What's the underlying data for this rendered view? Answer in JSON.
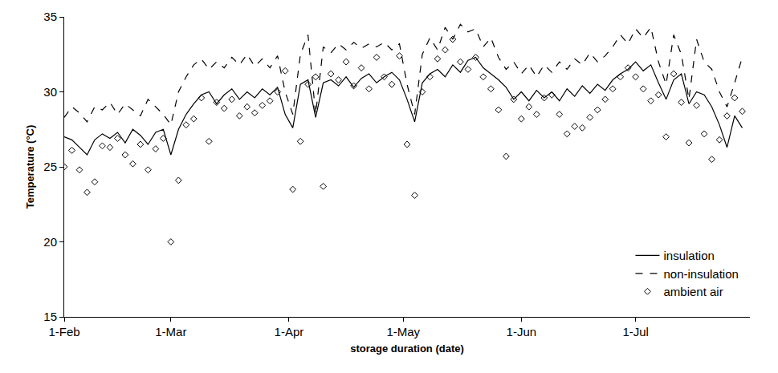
{
  "chart_data": {
    "type": "line",
    "x_title": "storage duration (date)",
    "y_title": "Temperature (°C)",
    "x": [
      0,
      2,
      4,
      6,
      8,
      10,
      12,
      14,
      16,
      18,
      20,
      22,
      24,
      26,
      28,
      30,
      32,
      34,
      36,
      38,
      40,
      42,
      44,
      46,
      48,
      50,
      52,
      54,
      56,
      58,
      60,
      62,
      64,
      66,
      68,
      70,
      72,
      74,
      76,
      78,
      80,
      82,
      84,
      86,
      88,
      90,
      92,
      94,
      96,
      98,
      100,
      102,
      104,
      106,
      108,
      110,
      112,
      114,
      116,
      118,
      120,
      122,
      124,
      126,
      128,
      130,
      132,
      134,
      136,
      138,
      140,
      142,
      144,
      146,
      148,
      150,
      152,
      154,
      156,
      158,
      160,
      162,
      164,
      166,
      168,
      170,
      172,
      174,
      176,
      178
    ],
    "xlim": [
      0,
      180
    ],
    "xticks": [
      {
        "value": 0,
        "label": "1-Feb"
      },
      {
        "value": 28,
        "label": "1-Mar"
      },
      {
        "value": 59,
        "label": "1-Apr"
      },
      {
        "value": 89,
        "label": "1-May"
      },
      {
        "value": 120,
        "label": "1-Jun"
      },
      {
        "value": 150,
        "label": "1-Jul"
      }
    ],
    "ylim": [
      15,
      35
    ],
    "yticks": [
      15,
      20,
      25,
      30,
      35
    ],
    "grid": false,
    "legend": "bottom right",
    "series": [
      {
        "name": "insulation",
        "type": "line",
        "line_style": "solid",
        "color": "#000000",
        "values": [
          27.0,
          26.8,
          26.3,
          25.8,
          26.8,
          27.2,
          26.9,
          27.3,
          26.6,
          27.5,
          27.1,
          26.5,
          27.3,
          27.5,
          25.8,
          27.5,
          28.5,
          29.2,
          29.8,
          30.0,
          29.2,
          29.8,
          30.2,
          29.5,
          30.0,
          29.6,
          30.2,
          29.8,
          30.3,
          28.5,
          27.6,
          30.5,
          30.8,
          28.3,
          30.6,
          30.8,
          30.4,
          31.0,
          30.3,
          30.9,
          31.2,
          30.6,
          31.0,
          31.3,
          30.8,
          29.5,
          28.0,
          30.6,
          31.2,
          31.5,
          31.0,
          31.8,
          31.3,
          32.1,
          32.3,
          31.6,
          31.2,
          30.8,
          30.3,
          29.5,
          30.0,
          29.4,
          30.1,
          29.6,
          30.0,
          29.4,
          30.2,
          29.7,
          30.4,
          29.9,
          30.5,
          30.1,
          30.8,
          31.2,
          31.5,
          32.0,
          31.4,
          31.8,
          30.6,
          29.5,
          30.8,
          31.2,
          29.2,
          30.0,
          29.8,
          29.0,
          27.8,
          26.3,
          28.4,
          27.6
        ]
      },
      {
        "name": "non-insulation",
        "type": "line",
        "line_style": "dash",
        "color": "#000000",
        "values": [
          28.3,
          29.0,
          28.6,
          28.0,
          29.0,
          28.8,
          29.3,
          28.5,
          29.2,
          28.8,
          28.4,
          29.5,
          29.0,
          28.5,
          27.8,
          30.0,
          31.0,
          31.8,
          32.2,
          31.5,
          32.0,
          31.6,
          32.3,
          31.8,
          32.5,
          31.7,
          32.2,
          31.6,
          32.4,
          30.0,
          28.5,
          32.5,
          33.8,
          28.5,
          33.0,
          32.6,
          33.2,
          32.8,
          33.3,
          32.9,
          33.2,
          33.0,
          33.3,
          32.8,
          33.2,
          30.5,
          28.5,
          32.5,
          33.6,
          32.8,
          34.3,
          33.5,
          34.5,
          34.0,
          34.2,
          33.0,
          33.6,
          32.3,
          31.5,
          32.0,
          31.2,
          31.8,
          31.0,
          31.8,
          31.3,
          32.0,
          31.5,
          32.2,
          31.8,
          32.6,
          32.0,
          32.4,
          33.0,
          33.8,
          33.2,
          34.2,
          33.6,
          34.3,
          32.0,
          30.5,
          33.8,
          32.5,
          29.5,
          33.5,
          32.0,
          31.5,
          30.0,
          29.0,
          30.6,
          32.3
        ]
      },
      {
        "name": "ambient air",
        "type": "scatter",
        "marker": "diamond",
        "color": "#000000",
        "values": [
          25.0,
          26.1,
          24.8,
          23.3,
          24.0,
          26.4,
          26.3,
          26.9,
          25.8,
          25.2,
          26.5,
          24.8,
          26.2,
          26.9,
          20.0,
          24.1,
          27.8,
          28.2,
          29.6,
          26.7,
          29.3,
          28.9,
          29.5,
          28.4,
          29.0,
          28.6,
          29.1,
          29.4,
          30.0,
          31.4,
          23.5,
          26.7,
          30.5,
          31.0,
          23.7,
          31.2,
          30.8,
          32.0,
          30.4,
          31.6,
          30.2,
          32.3,
          31.0,
          30.5,
          32.4,
          26.5,
          23.1,
          30.0,
          31.0,
          32.2,
          32.8,
          33.5,
          32.0,
          31.5,
          32.3,
          31.0,
          30.2,
          28.8,
          25.7,
          29.5,
          28.2,
          29.0,
          28.5,
          29.6,
          29.8,
          28.5,
          27.2,
          27.7,
          27.6,
          28.3,
          28.8,
          29.5,
          30.2,
          31.0,
          31.6,
          31.0,
          30.2,
          29.4,
          29.8,
          27.0,
          31.2,
          29.3,
          26.6,
          29.1,
          27.2,
          25.5,
          26.8,
          28.4,
          29.6,
          28.7
        ]
      }
    ]
  }
}
